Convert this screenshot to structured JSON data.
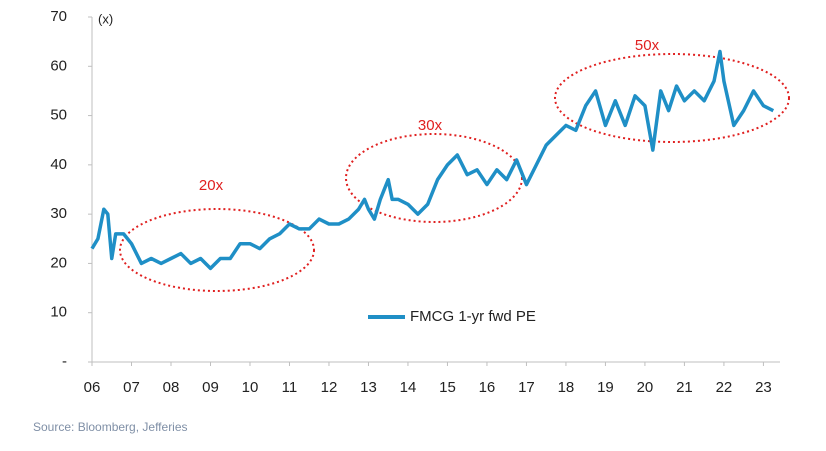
{
  "chart_data": {
    "type": "line",
    "y_label": "(x)",
    "source": "Source: Bloomberg, Jefferies",
    "annotations": [
      "20x",
      "30x",
      "50x"
    ],
    "xlim": [
      2006,
      2023.42
    ],
    "xticks": [
      {
        "value": 2006,
        "label": "06"
      },
      {
        "value": 2007,
        "label": "07"
      },
      {
        "value": 2008,
        "label": "08"
      },
      {
        "value": 2009,
        "label": "09"
      },
      {
        "value": 2010,
        "label": "10"
      },
      {
        "value": 2011,
        "label": "11"
      },
      {
        "value": 2012,
        "label": "12"
      },
      {
        "value": 2013,
        "label": "13"
      },
      {
        "value": 2014,
        "label": "14"
      },
      {
        "value": 2015,
        "label": "15"
      },
      {
        "value": 2016,
        "label": "16"
      },
      {
        "value": 2017,
        "label": "17"
      },
      {
        "value": 2018,
        "label": "18"
      },
      {
        "value": 2019,
        "label": "19"
      },
      {
        "value": 2020,
        "label": "20"
      },
      {
        "value": 2021,
        "label": "21"
      },
      {
        "value": 2022,
        "label": "22"
      },
      {
        "value": 2023,
        "label": "23"
      }
    ],
    "ylim": [
      0,
      70
    ],
    "yticks": [
      {
        "value": 0,
        "label": "-"
      },
      10,
      20,
      30,
      40,
      50,
      60,
      70
    ],
    "legend_position": "center",
    "series": [
      {
        "name": "FMCG 1-yr fwd PE",
        "color": "#1f8fc6",
        "x": [
          2006.0,
          2006.15,
          2006.3,
          2006.4,
          2006.5,
          2006.6,
          2006.8,
          2007.0,
          2007.25,
          2007.5,
          2007.75,
          2008.0,
          2008.25,
          2008.5,
          2008.75,
          2009.0,
          2009.25,
          2009.5,
          2009.75,
          2010.0,
          2010.25,
          2010.5,
          2010.75,
          2011.0,
          2011.25,
          2011.5,
          2011.75,
          2012.0,
          2012.25,
          2012.5,
          2012.75,
          2012.9,
          2013.0,
          2013.15,
          2013.3,
          2013.5,
          2013.6,
          2013.75,
          2014.0,
          2014.25,
          2014.5,
          2014.75,
          2015.0,
          2015.25,
          2015.5,
          2015.75,
          2016.0,
          2016.25,
          2016.5,
          2016.75,
          2017.0,
          2017.25,
          2017.5,
          2017.75,
          2018.0,
          2018.25,
          2018.5,
          2018.75,
          2019.0,
          2019.25,
          2019.5,
          2019.75,
          2020.0,
          2020.2,
          2020.4,
          2020.6,
          2020.8,
          2021.0,
          2021.25,
          2021.5,
          2021.75,
          2021.9,
          2022.0,
          2022.25,
          2022.5,
          2022.75,
          2023.0,
          2023.25
        ],
        "values": [
          23,
          25,
          31,
          30,
          21,
          26,
          26,
          24,
          20,
          21,
          20,
          21,
          22,
          20,
          21,
          19,
          21,
          21,
          24,
          24,
          23,
          25,
          26,
          28,
          27,
          27,
          29,
          28,
          28,
          29,
          31,
          33,
          31,
          29,
          33,
          37,
          33,
          33,
          32,
          30,
          32,
          37,
          40,
          42,
          38,
          39,
          36,
          39,
          37,
          41,
          36,
          40,
          44,
          46,
          48,
          47,
          52,
          55,
          48,
          53,
          48,
          54,
          52,
          43,
          55,
          51,
          56,
          53,
          55,
          53,
          57,
          63,
          57,
          48,
          51,
          55,
          52,
          51
        ]
      }
    ]
  }
}
